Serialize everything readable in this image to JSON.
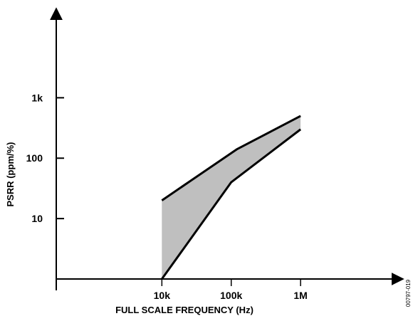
{
  "chart_data": {
    "type": "area",
    "xlabel": "FULL SCALE FREQUENCY (Hz)",
    "ylabel": "PSRR (ppm/%)",
    "x_scale": "log",
    "y_scale": "log",
    "x_ticks": [
      {
        "value": 10000,
        "label": "10k"
      },
      {
        "value": 100000,
        "label": "100k"
      },
      {
        "value": 1000000,
        "label": "1M"
      }
    ],
    "y_ticks": [
      {
        "value": 1,
        "label": ""
      },
      {
        "value": 10,
        "label": "10"
      },
      {
        "value": 100,
        "label": "100"
      },
      {
        "value": 1000,
        "label": "1k"
      }
    ],
    "xlim": [
      300,
      30000000
    ],
    "ylim": [
      1,
      30000
    ],
    "series": [
      {
        "values": [
          [
            10000,
            20
          ],
          [
            120000,
            140
          ],
          [
            1000000,
            500
          ]
        ]
      },
      {
        "values": [
          [
            10000,
            1
          ],
          [
            100000,
            40
          ],
          [
            1000000,
            300
          ]
        ]
      }
    ],
    "band_fill": "#bfbfbf",
    "figure_code": "00797-019"
  }
}
